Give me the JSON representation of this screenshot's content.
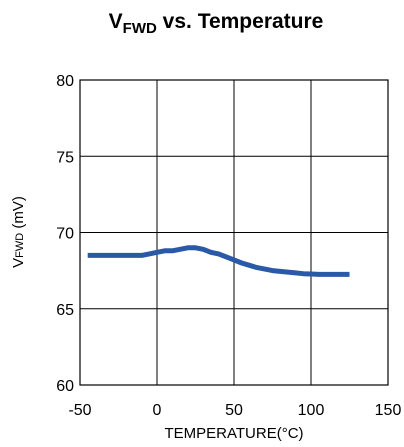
{
  "chart_data": {
    "type": "line",
    "title": {
      "main": "V",
      "subscript": "FWD",
      "rest": " vs. Temperature"
    },
    "xlabel": "TEMPERATURE(°C)",
    "ylabel": {
      "main": "V",
      "subscript": "FWD",
      "rest": " (mV)"
    },
    "xlim": [
      -50,
      150
    ],
    "ylim": [
      60,
      80
    ],
    "xticks": [
      -50,
      0,
      50,
      100,
      150
    ],
    "yticks": [
      60,
      65,
      70,
      75,
      80
    ],
    "grid": true,
    "series": [
      {
        "color": "#2a59a7",
        "x": [
          -45,
          -35,
          -25,
          -15,
          -10,
          -5,
          0,
          5,
          10,
          15,
          20,
          25,
          30,
          35,
          40,
          45,
          50,
          55,
          60,
          65,
          70,
          75,
          80,
          85,
          90,
          95,
          100,
          105,
          110,
          115,
          120,
          125
        ],
        "y": [
          68.5,
          68.5,
          68.5,
          68.5,
          68.5,
          68.6,
          68.7,
          68.8,
          68.8,
          68.9,
          69.0,
          69.0,
          68.9,
          68.7,
          68.6,
          68.4,
          68.2,
          68.0,
          67.85,
          67.7,
          67.6,
          67.5,
          67.45,
          67.4,
          67.35,
          67.3,
          67.28,
          67.25,
          67.25,
          67.25,
          67.25,
          67.25
        ]
      }
    ]
  }
}
